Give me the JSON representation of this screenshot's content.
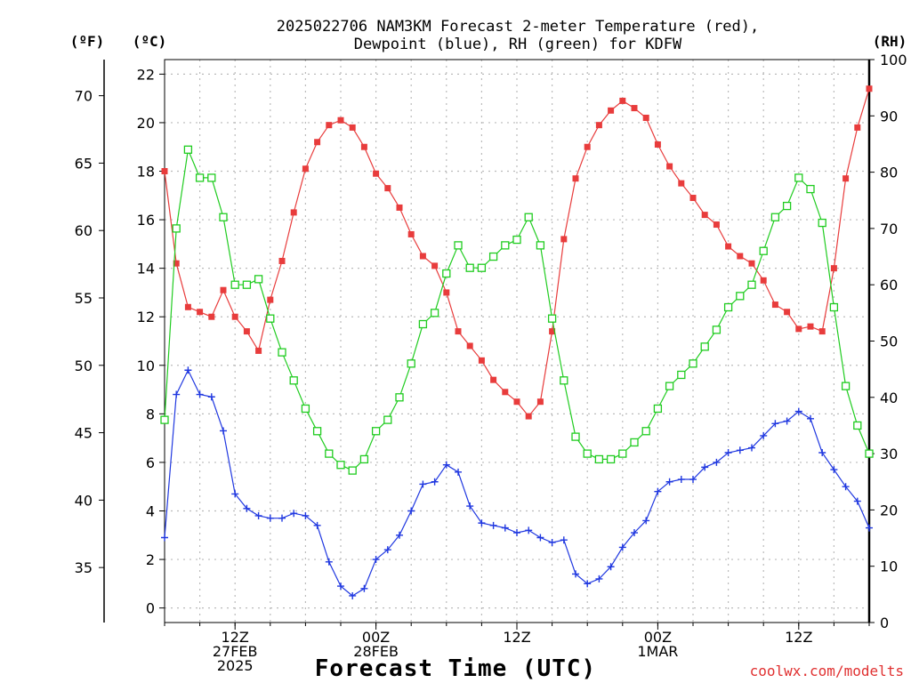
{
  "chart_data": {
    "type": "line",
    "title": [
      "2025022706 NAM3KM Forecast 2-meter Temperature (red),",
      "Dewpoint (blue), RH (green) for KDFW"
    ],
    "xlabel": "Forecast Time (UTC)",
    "credit": "coolwx.com/modelts",
    "units": {
      "left": "(ºF)",
      "mid": "(ºC)",
      "right": "(RH)"
    },
    "x_hours_after_init": {
      "start": 0,
      "end": 60,
      "step": 1
    },
    "xlim": [
      0,
      60
    ],
    "x_ticks": [
      {
        "x": 6,
        "lines": [
          "12Z",
          "27FEB",
          "2025"
        ]
      },
      {
        "x": 18,
        "lines": [
          "00Z",
          "28FEB"
        ]
      },
      {
        "x": 30,
        "lines": [
          "12Z"
        ]
      },
      {
        "x": 42,
        "lines": [
          "00Z",
          "1MAR"
        ]
      },
      {
        "x": 54,
        "lines": [
          "12Z"
        ]
      }
    ],
    "y_celsius": {
      "ylim": [
        -0.6,
        22.6
      ],
      "ticks": [
        0,
        2,
        4,
        6,
        8,
        10,
        12,
        14,
        16,
        18,
        20,
        22
      ]
    },
    "y_fahrenheit": {
      "ticks": [
        35,
        40,
        45,
        50,
        55,
        60,
        65,
        70
      ]
    },
    "y_rh": {
      "ylim": [
        0,
        100
      ],
      "ticks": [
        0,
        10,
        20,
        30,
        40,
        50,
        60,
        70,
        80,
        90,
        100
      ]
    },
    "grid": true,
    "series": [
      {
        "name": "Temperature",
        "color": "#e83c3c",
        "marker": "filled-square",
        "axis": "celsius",
        "values": [
          18.0,
          14.2,
          12.4,
          12.2,
          12.0,
          13.1,
          12.0,
          11.4,
          10.6,
          12.7,
          14.3,
          16.3,
          18.1,
          19.2,
          19.9,
          20.1,
          19.8,
          19.0,
          17.9,
          17.3,
          16.5,
          15.4,
          14.5,
          14.1,
          13.0,
          11.4,
          10.8,
          10.2,
          9.4,
          8.9,
          8.5,
          7.9,
          8.5,
          11.4,
          15.2,
          17.7,
          19.0,
          19.9,
          20.5,
          20.9,
          20.6,
          20.2,
          19.1,
          18.2,
          17.5,
          16.9,
          16.2,
          15.8,
          14.9,
          14.5,
          14.2,
          13.5,
          12.5,
          12.2,
          11.5,
          11.6,
          11.4,
          14.0,
          17.7,
          19.8,
          21.4
        ]
      },
      {
        "name": "Dewpoint",
        "color": "#2038e0",
        "marker": "plus",
        "axis": "celsius",
        "values": [
          2.9,
          8.8,
          9.8,
          8.8,
          8.7,
          7.3,
          4.7,
          4.1,
          3.8,
          3.7,
          3.7,
          3.9,
          3.8,
          3.4,
          1.9,
          0.9,
          0.5,
          0.8,
          2.0,
          2.4,
          3.0,
          4.0,
          5.1,
          5.2,
          5.9,
          5.6,
          4.2,
          3.5,
          3.4,
          3.3,
          3.1,
          3.2,
          2.9,
          2.7,
          2.8,
          1.4,
          1.0,
          1.2,
          1.7,
          2.5,
          3.1,
          3.6,
          4.8,
          5.2,
          5.3,
          5.3,
          5.8,
          6.0,
          6.4,
          6.5,
          6.6,
          7.1,
          7.6,
          7.7,
          8.1,
          7.8,
          6.4,
          5.7,
          5.0,
          4.4,
          3.3
        ]
      },
      {
        "name": "RH",
        "color": "#20cc20",
        "marker": "open-square",
        "axis": "rh",
        "values": [
          36,
          70,
          84,
          79,
          79,
          72,
          60,
          60,
          61,
          54,
          48,
          43,
          38,
          34,
          30,
          28,
          27,
          29,
          34,
          36,
          40,
          46,
          53,
          55,
          62,
          67,
          63,
          63,
          65,
          67,
          68,
          72,
          67,
          54,
          43,
          33,
          30,
          29,
          29,
          30,
          32,
          34,
          38,
          42,
          44,
          46,
          49,
          52,
          56,
          58,
          60,
          66,
          72,
          74,
          79,
          77,
          71,
          56,
          42,
          35,
          30
        ]
      }
    ]
  }
}
